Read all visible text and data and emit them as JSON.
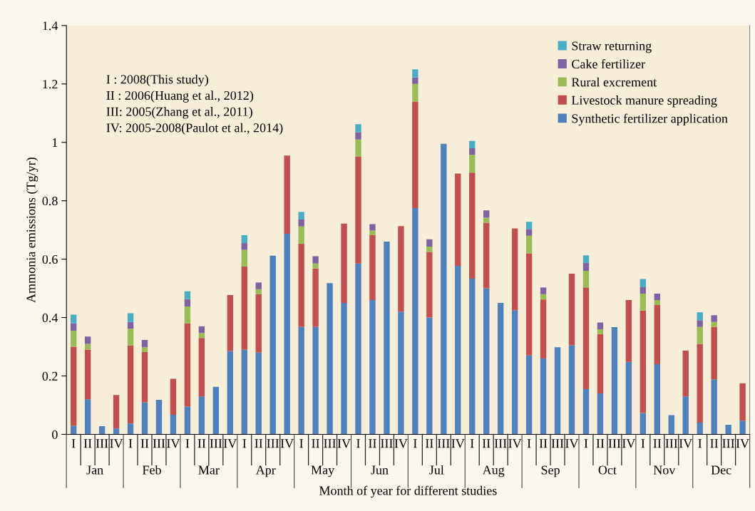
{
  "chart_data": {
    "type": "bar",
    "stacked": true,
    "categories": [
      "I",
      "II",
      "III",
      "IV",
      "I",
      "II",
      "III",
      "IV",
      "I",
      "II",
      "III",
      "IV",
      "I",
      "II",
      "III",
      "IV",
      "I",
      "II",
      "III",
      "IV",
      "I",
      "II",
      "III",
      "IV",
      "I",
      "II",
      "III",
      "IV",
      "I",
      "II",
      "III",
      "IV",
      "I",
      "II",
      "III",
      "IV",
      "I",
      "II",
      "III",
      "IV",
      "I",
      "II",
      "III",
      "IV",
      "I",
      "II",
      "III",
      "IV"
    ],
    "ylabel": "Ammonia emissions (Tg/yr)",
    "xlabel": "Month of year for different studies",
    "ylim": [
      0,
      1.4
    ],
    "yticks": [
      0,
      0.2,
      0.4,
      0.6,
      0.8,
      1,
      1.2,
      1.4
    ],
    "grid": false,
    "legend": "top right",
    "annotations": [
      "I : 2008(This study)\nII : 2006(Huang et al., 2012)\nIII: 2005(Zhang et al., 2011)\nIV: 2005-2008(Paulot et al., 2014)",
      "Jan",
      "Feb",
      "Mar",
      "Apr",
      "May",
      "Jun",
      "Jul",
      "Aug",
      "Sep",
      "Oct",
      "Nov",
      "Dec"
    ],
    "series": [
      {
        "name": "Synthetic fertilizer application",
        "color": "#4f81bd",
        "values": [
          0.03,
          0.12,
          0.028,
          0.02,
          0.037,
          0.11,
          0.118,
          0.067,
          0.095,
          0.13,
          0.163,
          0.285,
          0.29,
          0.28,
          0.612,
          0.687,
          0.368,
          0.368,
          0.518,
          0.45,
          0.585,
          0.46,
          0.66,
          0.42,
          0.775,
          0.4,
          0.995,
          0.577,
          0.533,
          0.5,
          0.45,
          0.425,
          0.27,
          0.26,
          0.298,
          0.305,
          0.155,
          0.14,
          0.367,
          0.248,
          0.073,
          0.24,
          0.066,
          0.13,
          0.04,
          0.188,
          0.033,
          0.047
        ]
      },
      {
        "name": "Livestock manure spreading",
        "color": "#c0504d",
        "values": [
          0.27,
          0.17,
          null,
          0.115,
          0.268,
          0.172,
          null,
          0.123,
          0.285,
          0.2,
          null,
          0.192,
          0.285,
          0.2,
          null,
          0.268,
          0.285,
          0.2,
          null,
          0.272,
          0.367,
          0.222,
          null,
          0.293,
          0.365,
          0.225,
          null,
          0.316,
          0.363,
          0.225,
          null,
          0.28,
          0.35,
          0.202,
          null,
          0.245,
          0.348,
          0.203,
          null,
          0.212,
          0.351,
          0.203,
          null,
          0.157,
          0.27,
          0.18,
          null,
          0.128
        ]
      },
      {
        "name": "Rural excrement",
        "color": "#9bbb59",
        "values": [
          0.055,
          0.02,
          null,
          null,
          0.057,
          0.016,
          null,
          null,
          0.058,
          0.017,
          null,
          null,
          0.057,
          0.017,
          null,
          null,
          0.059,
          0.017,
          null,
          null,
          0.058,
          0.016,
          null,
          null,
          0.06,
          0.018,
          null,
          null,
          0.061,
          0.017,
          null,
          null,
          0.06,
          0.018,
          null,
          null,
          0.057,
          0.017,
          null,
          null,
          0.058,
          0.017,
          null,
          null,
          0.058,
          0.017,
          null,
          null
        ]
      },
      {
        "name": "Cake fertilizer",
        "color": "#8064a2",
        "values": [
          0.025,
          0.025,
          null,
          null,
          0.023,
          0.025,
          null,
          null,
          0.025,
          0.023,
          null,
          null,
          0.023,
          0.023,
          null,
          null,
          0.024,
          0.025,
          null,
          null,
          0.025,
          0.022,
          null,
          null,
          0.022,
          0.025,
          null,
          null,
          0.023,
          0.025,
          null,
          null,
          0.023,
          0.023,
          null,
          null,
          0.027,
          0.023,
          null,
          null,
          0.022,
          0.022,
          null,
          null,
          0.023,
          0.023,
          null,
          null
        ]
      },
      {
        "name": "Straw returning",
        "color": "#4bacc6",
        "values": [
          0.03,
          null,
          null,
          null,
          0.03,
          null,
          null,
          null,
          0.027,
          null,
          null,
          null,
          0.027,
          null,
          null,
          null,
          0.026,
          null,
          null,
          null,
          0.027,
          null,
          null,
          null,
          0.028,
          null,
          null,
          null,
          0.025,
          null,
          null,
          null,
          0.025,
          null,
          null,
          null,
          0.026,
          null,
          null,
          null,
          0.028,
          null,
          null,
          null,
          0.027,
          null,
          null,
          null
        ]
      }
    ]
  }
}
